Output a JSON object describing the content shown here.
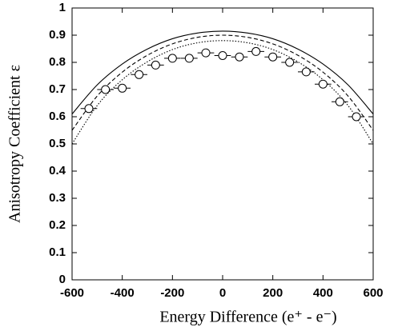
{
  "chart_data": {
    "type": "scatter",
    "xlabel": "Energy Difference (e⁺ - e⁻)",
    "ylabel": "Anisotropy Coefficient ε",
    "x": [
      -533,
      -467,
      -400,
      -333,
      -267,
      -200,
      -133,
      -67,
      0,
      67,
      133,
      200,
      267,
      333,
      400,
      467,
      533
    ],
    "values": [
      0.63,
      0.7,
      0.705,
      0.755,
      0.79,
      0.815,
      0.815,
      0.835,
      0.825,
      0.82,
      0.84,
      0.82,
      0.8,
      0.765,
      0.72,
      0.655,
      0.6
    ],
    "xerr": 33,
    "color": "#000000",
    "curve_x": [
      -600,
      -500,
      -400,
      -300,
      -200,
      -100,
      0,
      100,
      200,
      300,
      400,
      500,
      600
    ],
    "curves": [
      {
        "style": "solid",
        "values": [
          0.61,
          0.717,
          0.794,
          0.849,
          0.887,
          0.908,
          0.915,
          0.908,
          0.887,
          0.849,
          0.794,
          0.717,
          0.61
        ]
      },
      {
        "style": "dashed",
        "values": [
          0.55,
          0.676,
          0.764,
          0.826,
          0.868,
          0.892,
          0.9,
          0.892,
          0.868,
          0.826,
          0.764,
          0.676,
          0.55
        ]
      },
      {
        "style": "dotted",
        "values": [
          0.5,
          0.641,
          0.736,
          0.802,
          0.847,
          0.872,
          0.88,
          0.872,
          0.847,
          0.802,
          0.736,
          0.641,
          0.5
        ]
      }
    ],
    "xlim": [
      -600,
      600
    ],
    "ylim": [
      0,
      1
    ],
    "xticks": [
      -600,
      -400,
      -200,
      0,
      200,
      400,
      600
    ],
    "yticks": [
      0,
      0.1,
      0.2,
      0.3,
      0.4,
      0.5,
      0.6,
      0.7,
      0.8,
      0.9,
      1
    ]
  }
}
